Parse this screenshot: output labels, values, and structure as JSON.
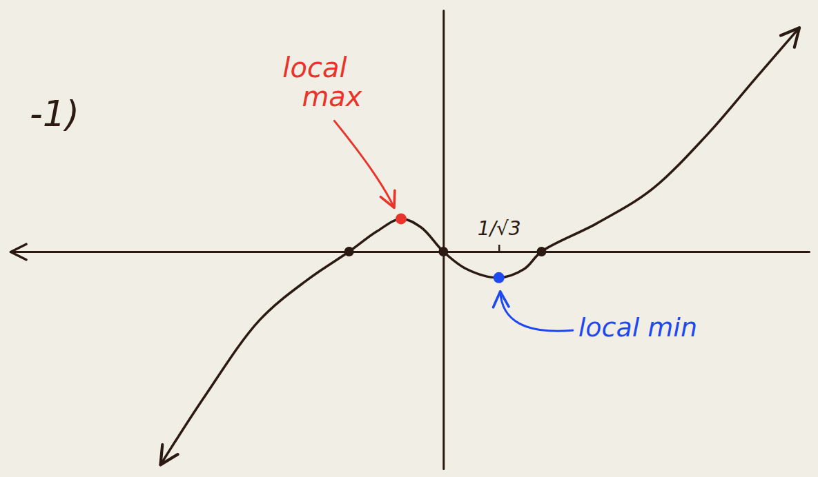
{
  "chart_data": {
    "type": "line",
    "x": [
      -2.94,
      -2.48,
      -1.91,
      -1.41,
      -0.98,
      -0.69,
      -0.44,
      -0.23,
      0,
      0.24,
      0.577,
      0.84,
      1.02,
      1.59,
      2.16,
      2.74,
      3.24,
      3.7
    ],
    "values": [
      -2.21,
      -1.5,
      -0.71,
      -0.29,
      0,
      0.21,
      0.34,
      0.25,
      0,
      -0.18,
      -0.27,
      -0.18,
      0,
      0.29,
      0.64,
      1.21,
      1.79,
      2.32
    ],
    "color": "#2a1a12",
    "xlim": [
      -4.5,
      3.8
    ],
    "ylim": [
      -2.25,
      2.5
    ],
    "xticks": [
      {
        "value": 0.577,
        "label": "1/√3"
      }
    ],
    "yticks": [],
    "tick_labels": "x",
    "grid": false,
    "points": [
      {
        "x": -0.98,
        "y": 0,
        "color": "#2a1a12"
      },
      {
        "x": 0,
        "y": 0,
        "color": "#2a1a12"
      },
      {
        "x": 1.02,
        "y": 0,
        "color": "#2a1a12"
      },
      {
        "x": -0.44,
        "y": 0.34,
        "color": "#e8342a",
        "label": "local max"
      },
      {
        "x": 0.577,
        "y": -0.27,
        "color": "#1e48f0",
        "label": "local min"
      }
    ],
    "annotations": [
      {
        "text": "-1)",
        "x": -4.3,
        "y": 1.4,
        "color": "#2a1a12"
      }
    ]
  }
}
